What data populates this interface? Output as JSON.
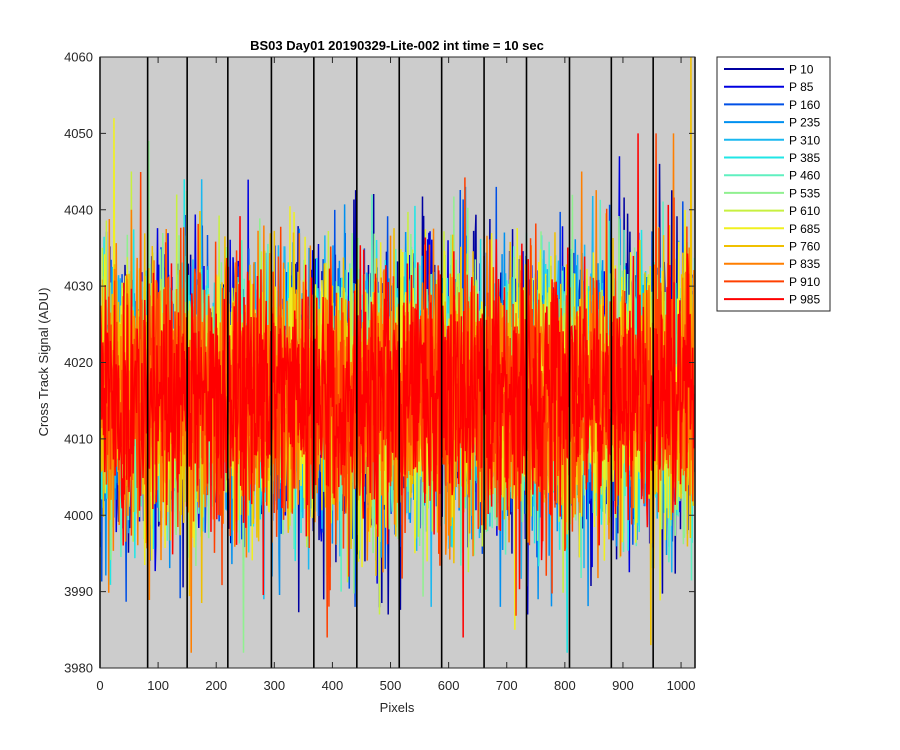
{
  "chart_data": {
    "type": "line",
    "title": "BS03 Day01 20190329-Lite-002 int time = 10 sec",
    "xlabel": "Pixels",
    "ylabel": "Cross Track Signal (ADU)",
    "xlim": [
      0,
      1024
    ],
    "ylim": [
      3980,
      4060
    ],
    "xticks": [
      0,
      100,
      200,
      300,
      400,
      500,
      600,
      700,
      800,
      900,
      1000
    ],
    "yticks": [
      3980,
      3990,
      4000,
      4010,
      4020,
      4030,
      4040,
      4050,
      4060
    ],
    "plot_background": "#cccccc",
    "grid": false,
    "legend_position": "outside-top-right",
    "vertical_markers": [
      0,
      82,
      150,
      220,
      295,
      368,
      442,
      515,
      588,
      661,
      734,
      808,
      880,
      952,
      1024
    ],
    "series": [
      {
        "name": "P 10",
        "color": "#0000a0",
        "mean": 4016,
        "std": 9,
        "min": 3987,
        "max": 4046
      },
      {
        "name": "P 85",
        "color": "#0000e0",
        "mean": 4016,
        "std": 9,
        "min": 3987,
        "max": 4047
      },
      {
        "name": "P 160",
        "color": "#0050e6",
        "mean": 4016,
        "std": 8.5,
        "min": 3988,
        "max": 4043
      },
      {
        "name": "P 235",
        "color": "#0090f0",
        "mean": 4016,
        "std": 8.5,
        "min": 3988,
        "max": 4043
      },
      {
        "name": "P 310",
        "color": "#1ab8f0",
        "mean": 4016,
        "std": 8.5,
        "min": 3988,
        "max": 4044
      },
      {
        "name": "P 385",
        "color": "#20e6e6",
        "mean": 4016,
        "std": 8.5,
        "min": 3982,
        "max": 4044
      },
      {
        "name": "P 460",
        "color": "#60f0c0",
        "mean": 4016,
        "std": 8.5,
        "min": 3990,
        "max": 4042
      },
      {
        "name": "P 535",
        "color": "#90f090",
        "mean": 4016,
        "std": 8.5,
        "min": 3982,
        "max": 4049
      },
      {
        "name": "P 610",
        "color": "#c8f040",
        "mean": 4016,
        "std": 8.5,
        "min": 3987,
        "max": 4045
      },
      {
        "name": "P 685",
        "color": "#f0f020",
        "mean": 4016,
        "std": 8.5,
        "min": 3985,
        "max": 4052
      },
      {
        "name": "P 760",
        "color": "#f0c000",
        "mean": 4016,
        "std": 8.5,
        "min": 3983,
        "max": 4060
      },
      {
        "name": "P 835",
        "color": "#ff7f00",
        "mean": 4016,
        "std": 8.5,
        "min": 3982,
        "max": 4050
      },
      {
        "name": "P 910",
        "color": "#ff4000",
        "mean": 4016,
        "std": 8.5,
        "min": 3984,
        "max": 4050
      },
      {
        "name": "P 985",
        "color": "#ff0000",
        "mean": 4016,
        "std": 8,
        "min": 3984,
        "max": 4050
      }
    ]
  }
}
